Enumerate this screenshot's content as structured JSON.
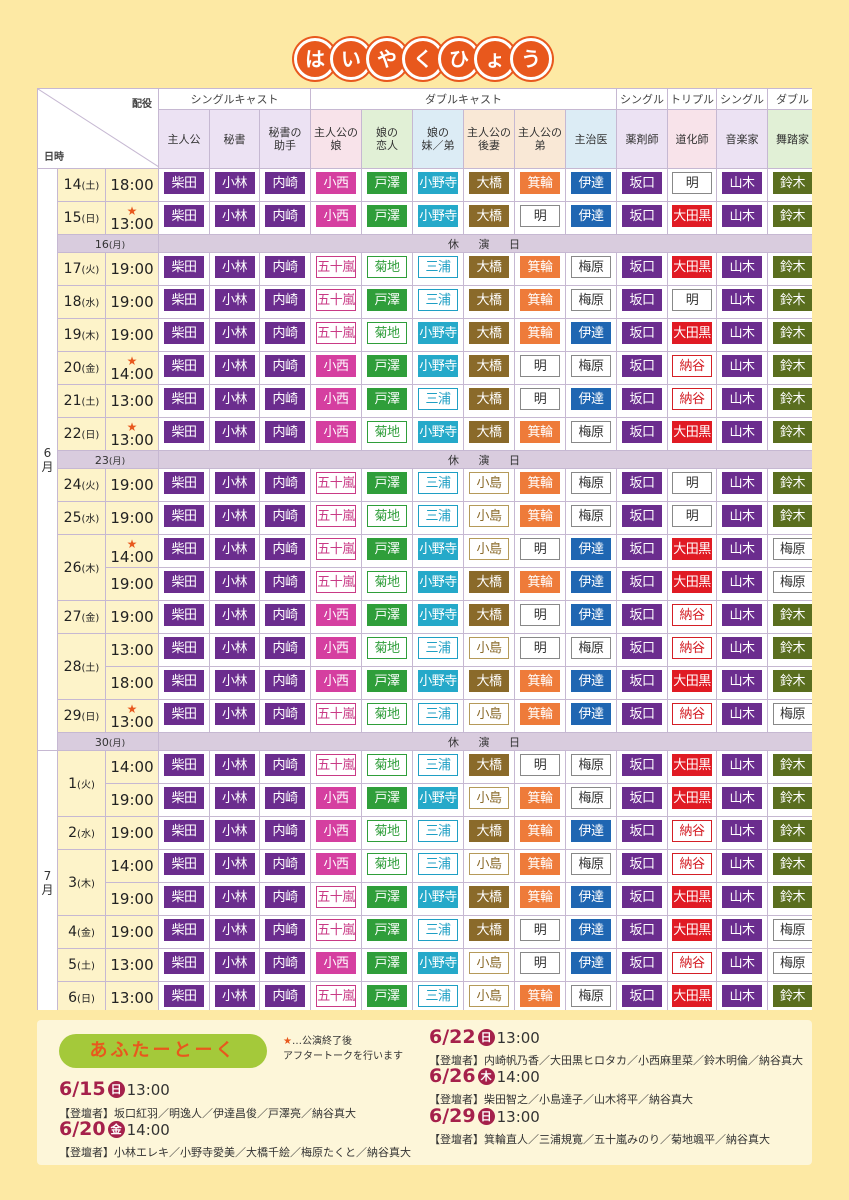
{
  "title": {
    "chars": [
      "は",
      "い",
      "や",
      "く",
      "ひ",
      "ょ",
      "う"
    ]
  },
  "header": {
    "corner_role": "配役",
    "corner_date": "日時",
    "groups": [
      "シングルキャスト",
      "ダブルキャスト",
      "シングル",
      "トリプル",
      "シングル",
      "ダブル"
    ],
    "roles": [
      "主人公",
      "秘書",
      "秘書の\n助手",
      "主人公の\n娘",
      "娘の\n恋人",
      "娘の\n妹／弟",
      "主人公の\n後妻",
      "主人公の\n弟",
      "主治医",
      "薬剤師",
      "道化師",
      "音楽家",
      "舞踏家"
    ]
  },
  "months": {
    "june": "6\n月",
    "july": "7\n月"
  },
  "star_mark": "★",
  "off_label": "休 演 日",
  "actors": {
    "柴田": {
      "bg": "#6b2d8e",
      "fg": "#ffffff",
      "bd": "#6b2d8e"
    },
    "小林": {
      "bg": "#6b2d8e",
      "fg": "#ffffff",
      "bd": "#6b2d8e"
    },
    "内崎": {
      "bg": "#6b2d8e",
      "fg": "#ffffff",
      "bd": "#6b2d8e"
    },
    "小西": {
      "bg": "#d53fa0",
      "fg": "#ffffff",
      "bd": "#d53fa0"
    },
    "五十嵐": {
      "bg": "#ffffff",
      "fg": "#c93a86",
      "bd": "#c93a86"
    },
    "戸澤": {
      "bg": "#2f9e3a",
      "fg": "#ffffff",
      "bd": "#2f9e3a"
    },
    "菊地": {
      "bg": "#ffffff",
      "fg": "#2f9e3a",
      "bd": "#2f9e3a"
    },
    "小野寺": {
      "bg": "#25a9c9",
      "fg": "#ffffff",
      "bd": "#25a9c9"
    },
    "三浦": {
      "bg": "#ffffff",
      "fg": "#1f9fc4",
      "bd": "#1f9fc4"
    },
    "大橋": {
      "bg": "#8a6a2a",
      "fg": "#ffffff",
      "bd": "#8a6a2a"
    },
    "小島": {
      "bg": "#ffffff",
      "fg": "#8a6a2a",
      "bd": "#b59a5a"
    },
    "箕輪": {
      "bg": "#ee7b3a",
      "fg": "#ffffff",
      "bd": "#ee7b3a"
    },
    "明": {
      "bg": "#ffffff",
      "fg": "#333333",
      "bd": "#888888"
    },
    "伊達": {
      "bg": "#1f66b2",
      "fg": "#ffffff",
      "bd": "#1f66b2"
    },
    "梅原": {
      "bg": "#ffffff",
      "fg": "#333333",
      "bd": "#888888"
    },
    "坂口": {
      "bg": "#6b2d8e",
      "fg": "#ffffff",
      "bd": "#6b2d8e"
    },
    "大田黒": {
      "bg": "#e01b24",
      "fg": "#ffffff",
      "bd": "#e01b24"
    },
    "納谷": {
      "bg": "#ffffff",
      "fg": "#d41f26",
      "bd": "#d41f26"
    },
    "山木": {
      "bg": "#6b2d8e",
      "fg": "#ffffff",
      "bd": "#6b2d8e"
    },
    "鈴木": {
      "bg": "#5a6e1f",
      "fg": "#ffffff",
      "bd": "#5a6e1f"
    }
  },
  "rows": [
    {
      "type": "perf",
      "month": "june",
      "day": "14",
      "dow": "土",
      "time": "18:00",
      "star": false,
      "cast": [
        "柴田",
        "小林",
        "内崎",
        "小西",
        "戸澤",
        "小野寺",
        "大橋",
        "箕輪",
        "伊達",
        "坂口",
        "明",
        "山木",
        "鈴木"
      ]
    },
    {
      "type": "perf",
      "day": "15",
      "dow": "日",
      "time": "13:00",
      "star": true,
      "cast": [
        "柴田",
        "小林",
        "内崎",
        "小西",
        "戸澤",
        "小野寺",
        "大橋",
        "明",
        "伊達",
        "坂口",
        "大田黒",
        "山木",
        "鈴木"
      ]
    },
    {
      "type": "off",
      "day": "16",
      "dow": "月"
    },
    {
      "type": "perf",
      "day": "17",
      "dow": "火",
      "time": "19:00",
      "star": false,
      "cast": [
        "柴田",
        "小林",
        "内崎",
        "五十嵐",
        "菊地",
        "三浦",
        "大橋",
        "箕輪",
        "梅原",
        "坂口",
        "大田黒",
        "山木",
        "鈴木"
      ]
    },
    {
      "type": "perf",
      "day": "18",
      "dow": "水",
      "time": "19:00",
      "star": false,
      "cast": [
        "柴田",
        "小林",
        "内崎",
        "五十嵐",
        "戸澤",
        "三浦",
        "大橋",
        "箕輪",
        "梅原",
        "坂口",
        "明",
        "山木",
        "鈴木"
      ]
    },
    {
      "type": "perf",
      "day": "19",
      "dow": "木",
      "time": "19:00",
      "star": false,
      "cast": [
        "柴田",
        "小林",
        "内崎",
        "五十嵐",
        "菊地",
        "小野寺",
        "大橋",
        "箕輪",
        "伊達",
        "坂口",
        "大田黒",
        "山木",
        "鈴木"
      ]
    },
    {
      "type": "perf",
      "day": "20",
      "dow": "金",
      "time": "14:00",
      "star": true,
      "cast": [
        "柴田",
        "小林",
        "内崎",
        "小西",
        "戸澤",
        "小野寺",
        "大橋",
        "明",
        "梅原",
        "坂口",
        "納谷",
        "山木",
        "鈴木"
      ]
    },
    {
      "type": "perf",
      "day": "21",
      "dow": "土",
      "time": "13:00",
      "star": false,
      "cast": [
        "柴田",
        "小林",
        "内崎",
        "小西",
        "戸澤",
        "三浦",
        "大橋",
        "明",
        "伊達",
        "坂口",
        "納谷",
        "山木",
        "鈴木"
      ]
    },
    {
      "type": "perf",
      "day": "22",
      "dow": "日",
      "time": "13:00",
      "star": true,
      "cast": [
        "柴田",
        "小林",
        "内崎",
        "小西",
        "菊地",
        "小野寺",
        "大橋",
        "箕輪",
        "梅原",
        "坂口",
        "大田黒",
        "山木",
        "鈴木"
      ]
    },
    {
      "type": "off",
      "day": "23",
      "dow": "月"
    },
    {
      "type": "perf",
      "day": "24",
      "dow": "火",
      "time": "19:00",
      "star": false,
      "cast": [
        "柴田",
        "小林",
        "内崎",
        "五十嵐",
        "戸澤",
        "三浦",
        "小島",
        "箕輪",
        "梅原",
        "坂口",
        "明",
        "山木",
        "鈴木"
      ]
    },
    {
      "type": "perf",
      "day": "25",
      "dow": "水",
      "time": "19:00",
      "star": false,
      "cast": [
        "柴田",
        "小林",
        "内崎",
        "五十嵐",
        "菊地",
        "三浦",
        "小島",
        "箕輪",
        "梅原",
        "坂口",
        "明",
        "山木",
        "鈴木"
      ]
    },
    {
      "type": "perf",
      "day": "26",
      "dow": "木",
      "time": "14:00",
      "star": true,
      "span": 2,
      "cast": [
        "柴田",
        "小林",
        "内崎",
        "五十嵐",
        "戸澤",
        "小野寺",
        "小島",
        "明",
        "伊達",
        "坂口",
        "大田黒",
        "山木",
        "梅原"
      ]
    },
    {
      "type": "perf",
      "time": "19:00",
      "star": false,
      "cast": [
        "柴田",
        "小林",
        "内崎",
        "五十嵐",
        "菊地",
        "小野寺",
        "大橋",
        "箕輪",
        "伊達",
        "坂口",
        "大田黒",
        "山木",
        "梅原"
      ]
    },
    {
      "type": "perf",
      "day": "27",
      "dow": "金",
      "time": "19:00",
      "star": false,
      "cast": [
        "柴田",
        "小林",
        "内崎",
        "小西",
        "戸澤",
        "小野寺",
        "大橋",
        "明",
        "伊達",
        "坂口",
        "納谷",
        "山木",
        "鈴木"
      ]
    },
    {
      "type": "perf",
      "day": "28",
      "dow": "土",
      "time": "13:00",
      "star": false,
      "span": 2,
      "cast": [
        "柴田",
        "小林",
        "内崎",
        "小西",
        "菊地",
        "三浦",
        "小島",
        "明",
        "梅原",
        "坂口",
        "納谷",
        "山木",
        "鈴木"
      ]
    },
    {
      "type": "perf",
      "time": "18:00",
      "star": false,
      "cast": [
        "柴田",
        "小林",
        "内崎",
        "小西",
        "戸澤",
        "小野寺",
        "大橋",
        "箕輪",
        "伊達",
        "坂口",
        "大田黒",
        "山木",
        "鈴木"
      ]
    },
    {
      "type": "perf",
      "day": "29",
      "dow": "日",
      "time": "13:00",
      "star": true,
      "cast": [
        "柴田",
        "小林",
        "内崎",
        "五十嵐",
        "菊地",
        "三浦",
        "小島",
        "箕輪",
        "伊達",
        "坂口",
        "納谷",
        "山木",
        "梅原"
      ]
    },
    {
      "type": "off",
      "day": "30",
      "dow": "月"
    },
    {
      "type": "perf",
      "month": "july",
      "day": "1",
      "dow": "火",
      "time": "14:00",
      "star": false,
      "span": 2,
      "cast": [
        "柴田",
        "小林",
        "内崎",
        "五十嵐",
        "菊地",
        "三浦",
        "大橋",
        "明",
        "梅原",
        "坂口",
        "大田黒",
        "山木",
        "鈴木"
      ]
    },
    {
      "type": "perf",
      "time": "19:00",
      "star": false,
      "cast": [
        "柴田",
        "小林",
        "内崎",
        "小西",
        "戸澤",
        "小野寺",
        "小島",
        "箕輪",
        "梅原",
        "坂口",
        "大田黒",
        "山木",
        "鈴木"
      ]
    },
    {
      "type": "perf",
      "day": "2",
      "dow": "水",
      "time": "19:00",
      "star": false,
      "cast": [
        "柴田",
        "小林",
        "内崎",
        "小西",
        "菊地",
        "三浦",
        "大橋",
        "箕輪",
        "伊達",
        "坂口",
        "納谷",
        "山木",
        "鈴木"
      ]
    },
    {
      "type": "perf",
      "day": "3",
      "dow": "木",
      "time": "14:00",
      "star": false,
      "span": 2,
      "cast": [
        "柴田",
        "小林",
        "内崎",
        "小西",
        "菊地",
        "三浦",
        "小島",
        "箕輪",
        "梅原",
        "坂口",
        "納谷",
        "山木",
        "鈴木"
      ]
    },
    {
      "type": "perf",
      "time": "19:00",
      "star": false,
      "cast": [
        "柴田",
        "小林",
        "内崎",
        "五十嵐",
        "戸澤",
        "小野寺",
        "大橋",
        "箕輪",
        "伊達",
        "坂口",
        "大田黒",
        "山木",
        "鈴木"
      ]
    },
    {
      "type": "perf",
      "day": "4",
      "dow": "金",
      "time": "19:00",
      "star": false,
      "cast": [
        "柴田",
        "小林",
        "内崎",
        "五十嵐",
        "戸澤",
        "三浦",
        "大橋",
        "明",
        "伊達",
        "坂口",
        "大田黒",
        "山木",
        "梅原"
      ]
    },
    {
      "type": "perf",
      "day": "5",
      "dow": "土",
      "time": "13:00",
      "star": false,
      "cast": [
        "柴田",
        "小林",
        "内崎",
        "小西",
        "戸澤",
        "小野寺",
        "小島",
        "明",
        "伊達",
        "坂口",
        "納谷",
        "山木",
        "梅原"
      ]
    },
    {
      "type": "perf",
      "day": "6",
      "dow": "日",
      "time": "13:00",
      "star": false,
      "cast": [
        "柴田",
        "小林",
        "内崎",
        "五十嵐",
        "戸澤",
        "三浦",
        "小島",
        "箕輪",
        "梅原",
        "坂口",
        "大田黒",
        "山木",
        "鈴木"
      ]
    }
  ],
  "talk": {
    "badge": "あふたーとーく",
    "note_star": "★",
    "note_line1": "…公演終了後",
    "note_line2": "アフタートークを行います",
    "events": [
      {
        "date": "6/15",
        "dow": "日",
        "time": "13:00",
        "cast": "【登壇者】坂口紅羽／明逸人／伊達昌俊／戸澤亮／納谷真大"
      },
      {
        "date": "6/20",
        "dow": "金",
        "time": "14:00",
        "cast": "【登壇者】小林エレキ／小野寺愛美／大橋千絵／梅原たくと／納谷真大"
      },
      {
        "date": "6/22",
        "dow": "日",
        "time": "13:00",
        "cast": "【登壇者】内崎帆乃香／大田黒ヒロタカ／小西麻里菜／鈴木明倫／納谷真大"
      },
      {
        "date": "6/26",
        "dow": "木",
        "time": "14:00",
        "cast": "【登壇者】柴田智之／小島達子／山木将平／納谷真大"
      },
      {
        "date": "6/29",
        "dow": "日",
        "time": "13:00",
        "cast": "【登壇者】箕輪直人／三浦規寛／五十嵐みのり／菊地颯平／納谷真大"
      }
    ]
  }
}
